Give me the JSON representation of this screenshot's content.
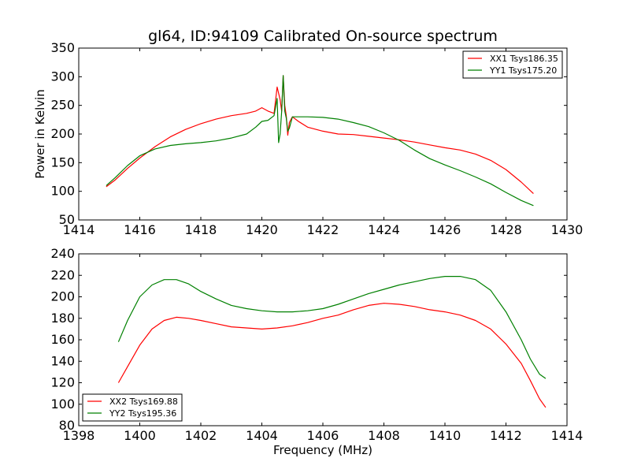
{
  "chart_data": [
    {
      "type": "line",
      "title": "gl64, ID:94109 Calibrated On-source spectrum",
      "xlabel": "",
      "ylabel": "Power in Kelvin",
      "xlim": [
        1414,
        1430
      ],
      "ylim": [
        50,
        350
      ],
      "xticks": [
        1414,
        1416,
        1418,
        1420,
        1422,
        1424,
        1426,
        1428,
        1430
      ],
      "yticks": [
        50,
        100,
        150,
        200,
        250,
        300,
        350
      ],
      "legend_position": "top-right",
      "series": [
        {
          "name": "XX1 Tsys186.35",
          "color": "#ff0000",
          "x": [
            1414.9,
            1415.2,
            1415.6,
            1416.0,
            1416.5,
            1417.0,
            1417.5,
            1418.0,
            1418.5,
            1419.0,
            1419.5,
            1419.8,
            1420.0,
            1420.2,
            1420.4,
            1420.5,
            1420.6,
            1420.65,
            1420.7,
            1420.75,
            1420.8,
            1420.85,
            1420.9,
            1421.0,
            1421.2,
            1421.5,
            1422.0,
            1422.5,
            1423.0,
            1423.5,
            1424.0,
            1424.5,
            1425.0,
            1425.5,
            1426.0,
            1426.5,
            1427.0,
            1427.5,
            1428.0,
            1428.5,
            1428.9
          ],
          "y": [
            108,
            120,
            140,
            158,
            178,
            195,
            208,
            218,
            226,
            232,
            236,
            240,
            246,
            240,
            236,
            282,
            260,
            240,
            302,
            250,
            232,
            198,
            220,
            230,
            222,
            212,
            205,
            200,
            199,
            196,
            193,
            190,
            186,
            181,
            176,
            172,
            165,
            154,
            138,
            116,
            96
          ]
        },
        {
          "name": "YY1 Tsys175.20",
          "color": "#008000",
          "x": [
            1414.9,
            1415.2,
            1415.6,
            1416.0,
            1416.5,
            1417.0,
            1417.5,
            1418.0,
            1418.5,
            1419.0,
            1419.5,
            1419.8,
            1420.0,
            1420.2,
            1420.4,
            1420.5,
            1420.55,
            1420.6,
            1420.65,
            1420.7,
            1420.75,
            1420.8,
            1420.85,
            1420.9,
            1421.0,
            1421.5,
            1422.0,
            1422.5,
            1423.0,
            1423.5,
            1424.0,
            1424.5,
            1425.0,
            1425.5,
            1426.0,
            1426.5,
            1427.0,
            1427.5,
            1428.0,
            1428.5,
            1428.9
          ],
          "y": [
            110,
            124,
            145,
            162,
            174,
            180,
            183,
            185,
            188,
            193,
            200,
            212,
            222,
            224,
            232,
            262,
            185,
            200,
            240,
            302,
            240,
            228,
            205,
            210,
            230,
            230,
            229,
            226,
            220,
            213,
            202,
            189,
            172,
            157,
            146,
            136,
            125,
            113,
            98,
            84,
            75
          ]
        }
      ]
    },
    {
      "type": "line",
      "title": "",
      "xlabel": "Frequency (MHz)",
      "ylabel": "",
      "xlim": [
        1398,
        1414
      ],
      "ylim": [
        80,
        240
      ],
      "xticks": [
        1398,
        1400,
        1402,
        1404,
        1406,
        1408,
        1410,
        1412,
        1414
      ],
      "yticks": [
        80,
        100,
        120,
        140,
        160,
        180,
        200,
        220,
        240
      ],
      "legend_position": "bottom-left",
      "series": [
        {
          "name": "XX2 Tsys169.88",
          "color": "#ff0000",
          "x": [
            1399.3,
            1399.6,
            1400.0,
            1400.4,
            1400.8,
            1401.2,
            1401.6,
            1402.0,
            1402.5,
            1403.0,
            1403.5,
            1404.0,
            1404.5,
            1405.0,
            1405.5,
            1406.0,
            1406.5,
            1407.0,
            1407.5,
            1408.0,
            1408.5,
            1409.0,
            1409.5,
            1410.0,
            1410.5,
            1411.0,
            1411.5,
            1412.0,
            1412.5,
            1412.8,
            1413.1,
            1413.3
          ],
          "y": [
            120,
            135,
            155,
            170,
            178,
            181,
            180,
            178,
            175,
            172,
            171,
            170,
            171,
            173,
            176,
            180,
            183,
            188,
            192,
            194,
            193,
            191,
            188,
            186,
            183,
            178,
            170,
            156,
            138,
            122,
            105,
            97
          ]
        },
        {
          "name": "YY2 Tsys195.36",
          "color": "#008000",
          "x": [
            1399.3,
            1399.6,
            1400.0,
            1400.4,
            1400.8,
            1401.2,
            1401.6,
            1402.0,
            1402.5,
            1403.0,
            1403.5,
            1404.0,
            1404.5,
            1405.0,
            1405.5,
            1406.0,
            1406.5,
            1407.0,
            1407.5,
            1408.0,
            1408.5,
            1409.0,
            1409.5,
            1410.0,
            1410.5,
            1411.0,
            1411.5,
            1412.0,
            1412.5,
            1412.8,
            1413.1,
            1413.3
          ],
          "y": [
            158,
            178,
            200,
            211,
            216,
            216,
            212,
            205,
            198,
            192,
            189,
            187,
            186,
            186,
            187,
            189,
            193,
            198,
            203,
            207,
            211,
            214,
            217,
            219,
            219,
            216,
            206,
            186,
            160,
            142,
            128,
            124
          ]
        }
      ]
    }
  ]
}
